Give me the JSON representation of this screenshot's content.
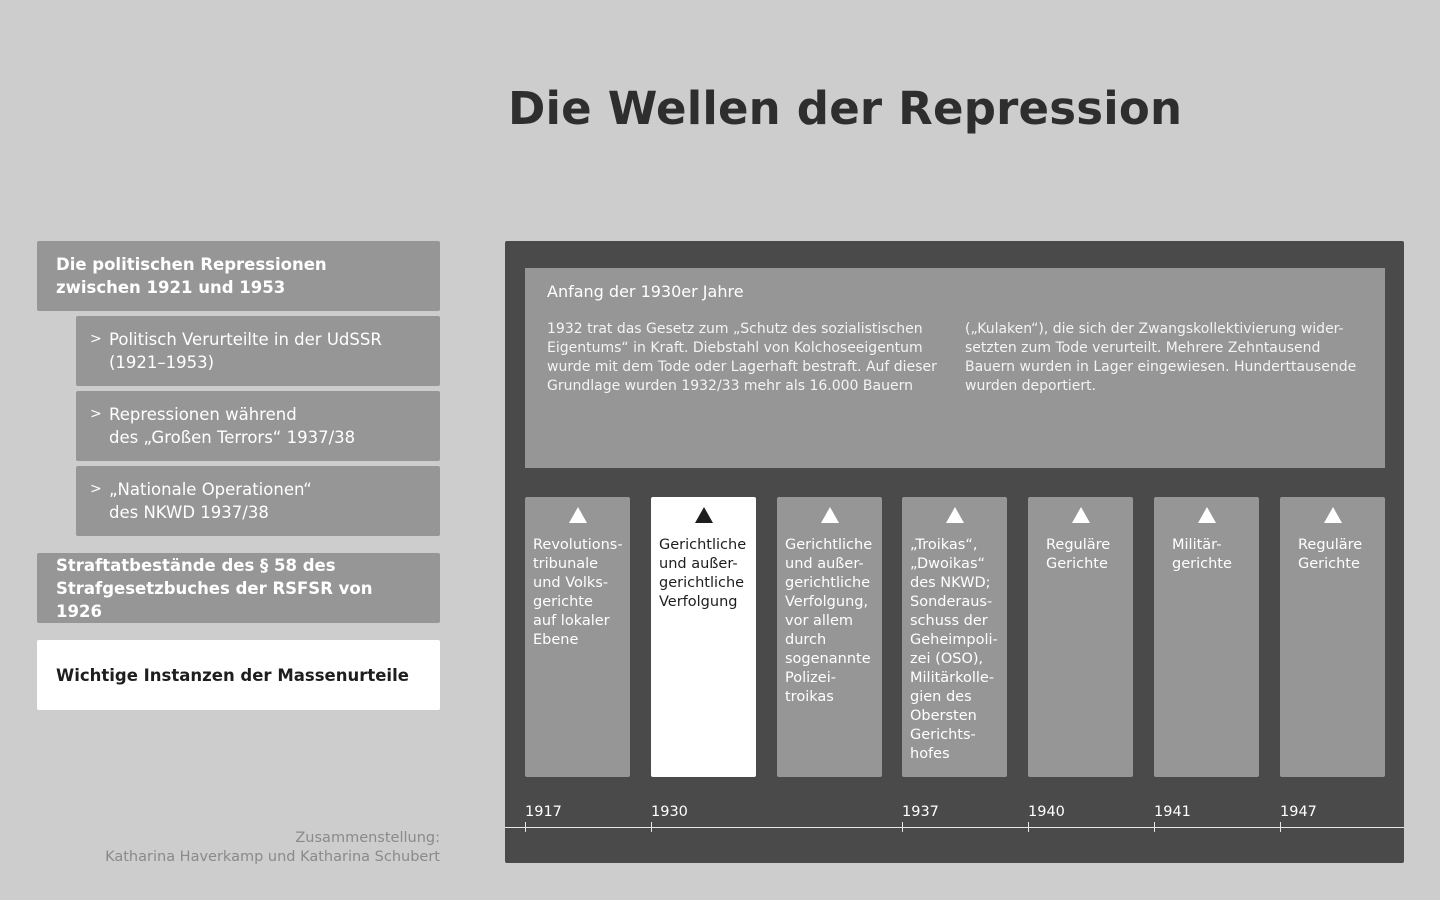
{
  "page": {
    "title": "Die Wellen der Repression"
  },
  "nav": {
    "sections": [
      {
        "label": "Die politischen Repressionen\nzwischen 1921 und 1953",
        "active": false
      },
      {
        "label": "Straftatbestände des § 58 des\nStrafgesetzbuches der RSFSR von 1926",
        "active": false
      },
      {
        "label": "Wichtige Instanzen der Massenurteile",
        "active": true
      }
    ],
    "subitems": [
      {
        "chevron": ">",
        "label": "Politisch Verurteilte in der UdSSR\n(1921–1953)"
      },
      {
        "chevron": ">",
        "label": "Repressionen während\ndes „Großen Terrors“ 1937/38"
      },
      {
        "chevron": ">",
        "label": "„Nationale Operationen“\ndes NKWD 1937/38"
      }
    ]
  },
  "credit": "Zusammenstellung:\nKatharina Haverkamp und Katharina Schubert",
  "info": {
    "heading": "Anfang der 1930er Jahre",
    "col1": "1932 trat das Gesetz zum „Schutz des sozialistischen\nEigentums“ in Kraft. Diebstahl von Kolchoseeigentum\nwurde mit dem Tode oder Lagerhaft bestraft. Auf dieser\nGrundlage wurden 1932/33 mehr als 16.000 Bauern",
    "col2": "(„Kulaken“), die sich der Zwangskollektivierung wider-\nsetzten zum Tode verurteilt. Mehrere Zehntausend\nBauern wurden in Lager eingewiesen. Hunderttausende\nwurden deportiert."
  },
  "cards": [
    {
      "text": "Revolutions-\ntribunale\nund Volks-\ngerichte\nauf lokaler\nEbene",
      "active": false
    },
    {
      "text": "Gerichtliche\nund außer-\ngerichtliche\nVerfolgung",
      "active": true
    },
    {
      "text": "Gerichtliche\nund außer-\ngerichtliche\nVerfolgung,\nvor allem\ndurch\nsogenannte\nPolizei-\ntroikas",
      "active": false
    },
    {
      "text": "„Troikas“,\n„Dwoikas“\ndes NKWD;\nSonderaus-\nschuss der\nGeheimpoli-\nzei (OSO),\nMilitärkolle-\ngien des\nObersten\nGerichts-\nhofes",
      "active": false
    },
    {
      "text": "Reguläre\nGerichte",
      "active": false
    },
    {
      "text": "Militär-\ngerichte",
      "active": false
    },
    {
      "text": "Reguläre\nGerichte",
      "active": false
    }
  ],
  "timeline": {
    "years": [
      "1917",
      "1930",
      "1937",
      "1940",
      "1941",
      "1947"
    ]
  }
}
